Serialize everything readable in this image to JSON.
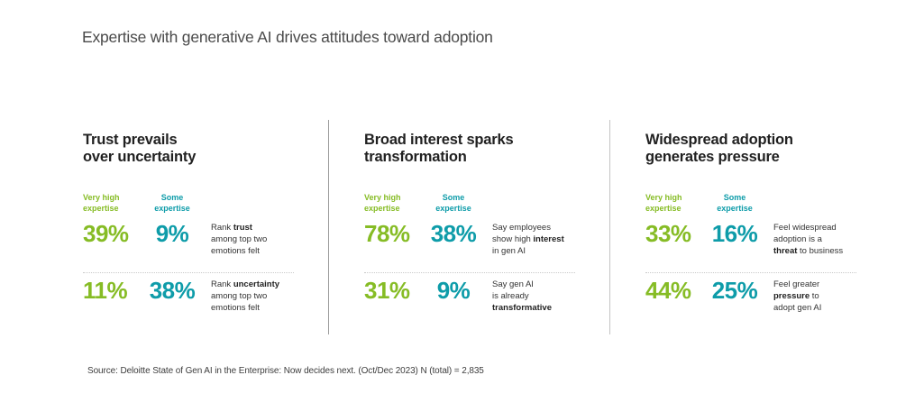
{
  "title": "Expertise with generative AI drives attitudes toward adoption",
  "column_labels": {
    "very_high": "Very high\nexpertise",
    "some": "Some\nexpertise"
  },
  "colors": {
    "very_high_green": "#86BC25",
    "some_teal": "#0E9CA9"
  },
  "columns": [
    {
      "heading": "Trust prevails\nover uncertainty",
      "rows": [
        {
          "very_high": "39%",
          "some": "9%",
          "desc_pre": "Rank ",
          "desc_bold": "trust",
          "desc_post": "\namong top two\nemotions felt"
        },
        {
          "very_high": "11%",
          "some": "38%",
          "desc_pre": "Rank ",
          "desc_bold": "uncertainty",
          "desc_post": "\namong top two\nemotions felt"
        }
      ]
    },
    {
      "heading": "Broad interest sparks\ntransformation",
      "rows": [
        {
          "very_high": "78%",
          "some": "38%",
          "desc_pre": "Say employees\nshow high ",
          "desc_bold": "interest",
          "desc_post": "\nin gen AI"
        },
        {
          "very_high": "31%",
          "some": "9%",
          "desc_pre": "Say gen AI\nis already\n",
          "desc_bold": "transformative",
          "desc_post": ""
        }
      ]
    },
    {
      "heading": "Widespread adoption\ngenerates pressure",
      "rows": [
        {
          "very_high": "33%",
          "some": "16%",
          "desc_pre": "Feel widespread\nadoption is a\n",
          "desc_bold": "threat",
          "desc_post": " to business"
        },
        {
          "very_high": "44%",
          "some": "25%",
          "desc_pre": "Feel greater\n",
          "desc_bold": "pressure",
          "desc_post": " to\nadopt gen AI"
        }
      ]
    }
  ],
  "source": "Source: Deloitte State of Gen AI in the Enterprise: Now decides next. (Oct/Dec 2023) N (total) = 2,835",
  "chart_data": {
    "type": "table",
    "title": "Expertise with generative AI drives attitudes toward adoption",
    "series_names": [
      "Very high expertise",
      "Some expertise"
    ],
    "unit": "percent",
    "groups": [
      {
        "heading": "Trust prevails over uncertainty",
        "metrics": [
          {
            "label": "Rank trust among top two emotions felt",
            "very_high_expertise": 39,
            "some_expertise": 9
          },
          {
            "label": "Rank uncertainty among top two emotions felt",
            "very_high_expertise": 11,
            "some_expertise": 38
          }
        ]
      },
      {
        "heading": "Broad interest sparks transformation",
        "metrics": [
          {
            "label": "Say employees show high interest in gen AI",
            "very_high_expertise": 78,
            "some_expertise": 38
          },
          {
            "label": "Say gen AI is already transformative",
            "very_high_expertise": 31,
            "some_expertise": 9
          }
        ]
      },
      {
        "heading": "Widespread adoption generates pressure",
        "metrics": [
          {
            "label": "Feel widespread adoption is a threat to business",
            "very_high_expertise": 33,
            "some_expertise": 16
          },
          {
            "label": "Feel greater pressure to adopt gen AI",
            "very_high_expertise": 44,
            "some_expertise": 25
          }
        ]
      }
    ],
    "source": "Source: Deloitte State of Gen AI in the Enterprise: Now decides next. (Oct/Dec 2023) N (total) = 2,835"
  }
}
